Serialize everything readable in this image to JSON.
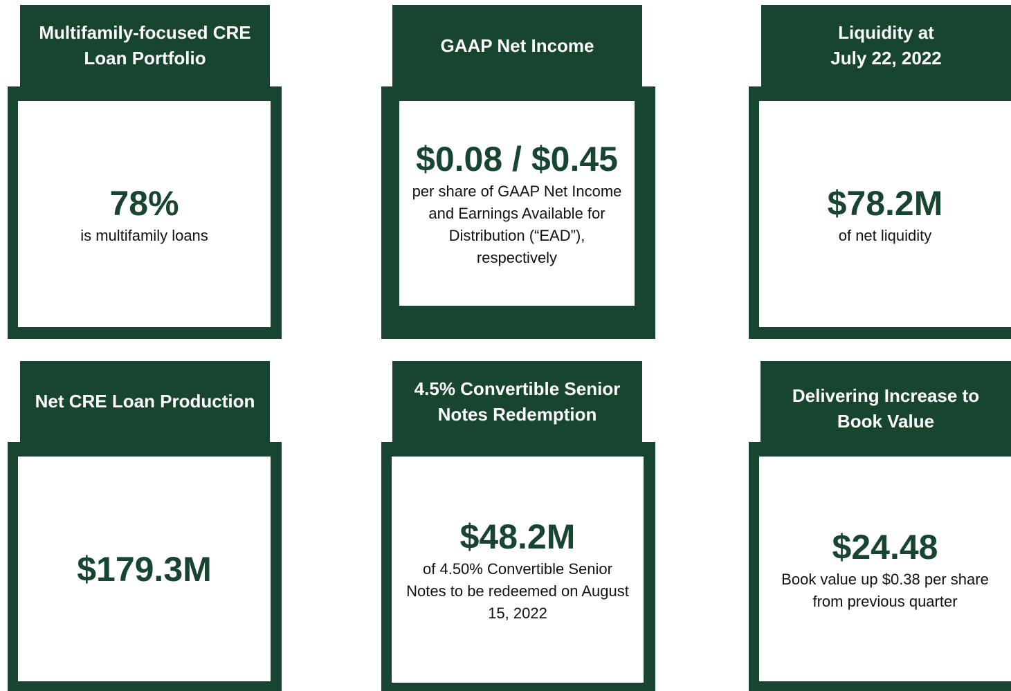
{
  "cards": [
    {
      "title_lines": [
        "Multifamily-focused CRE",
        "Loan Portfolio"
      ],
      "value": "78%",
      "description_lines": [
        "is multifamily loans"
      ]
    },
    {
      "title_lines": [
        "GAAP Net Income"
      ],
      "value": "$0.08 / $0.45",
      "description_lines": [
        "per share of GAAP Net Income",
        "and Earnings Available for",
        "Distribution (“EAD”),",
        "respectively"
      ]
    },
    {
      "title_lines": [
        "Liquidity at",
        "July 22, 2022"
      ],
      "value": "$78.2M",
      "description_lines": [
        "of net liquidity"
      ]
    },
    {
      "title_lines": [
        "Net CRE Loan Production"
      ],
      "value": "$179.3M",
      "description_lines": []
    },
    {
      "title_lines": [
        "4.5% Convertible Senior",
        "Notes Redemption"
      ],
      "value": "$48.2M",
      "description_lines": [
        "of 4.50% Convertible Senior",
        "Notes to be redeemed on August",
        "15, 2022"
      ]
    },
    {
      "title_lines": [
        "Delivering Increase to",
        "Book Value"
      ],
      "value": "$24.48",
      "description_lines": [
        "Book value up $0.38 per share",
        "from previous quarter"
      ]
    }
  ]
}
